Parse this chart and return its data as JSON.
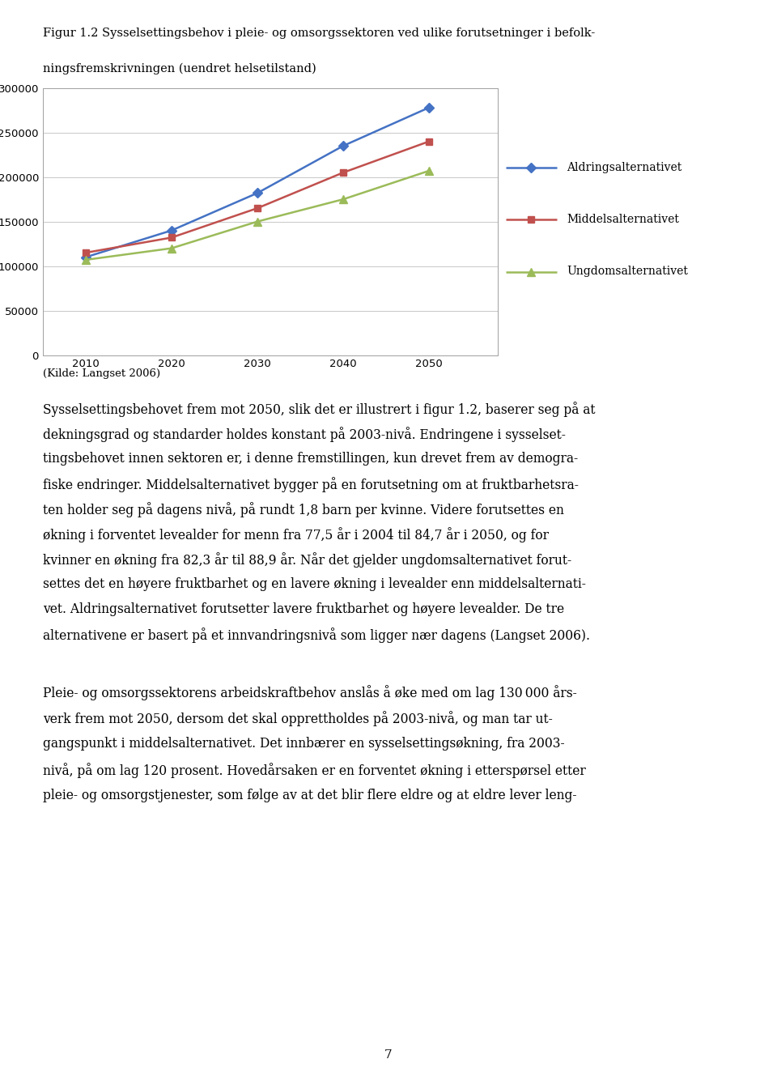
{
  "title_line1": "Figur 1.2 Sysselsettingsbehov i pleie- og omsorgssektoren ved ulike forutsetninger i befolk-",
  "title_line2": "ningsfremskrivningen (uendret helsetilstand)",
  "x_values": [
    2010,
    2020,
    2030,
    2040,
    2050
  ],
  "aldring": [
    110000,
    140000,
    182000,
    235000,
    278000
  ],
  "middels": [
    115000,
    132000,
    165000,
    205000,
    240000
  ],
  "ungdom": [
    107000,
    120000,
    150000,
    175000,
    207000
  ],
  "aldring_color": "#4472C4",
  "middels_color": "#C0504D",
  "ungdom_color": "#9BBB59",
  "aldring_label": "Aldringsalternativet",
  "middels_label": "Middelsalternativet",
  "ungdom_label": "Ungdomsalternativet",
  "ylim": [
    0,
    300000
  ],
  "yticks": [
    0,
    50000,
    100000,
    150000,
    200000,
    250000,
    300000
  ],
  "xlim": [
    2005,
    2058
  ],
  "xticks": [
    2010,
    2020,
    2030,
    2040,
    2050
  ],
  "source_text": "(Kilde: Langset 2006)",
  "page_number": "7",
  "background_color": "#FFFFFF",
  "chart_bg": "#FFFFFF",
  "grid_color": "#C8C8C8",
  "body1_lines": [
    "Sysselsettingsbehovet frem mot 2050, slik det er illustrert i figur 1.2, baserer seg på at",
    "dekningsgrad og standarder holdes konstant på 2003-nivå. Endringene i sysselset-",
    "tingsbehovet innen sektoren er, i denne fremstillingen, kun drevet frem av demogra-",
    "fiske endringer. Middelsalternativet bygger på en forutsetning om at fruktbarhetsra-",
    "ten holder seg på dagens nivå, på rundt 1,8 barn per kvinne. Videre forutsettes en",
    "økning i forventet levealder for menn fra 77,5 år i 2004 til 84,7 år i 2050, og for",
    "kvinner en økning fra 82,3 år til 88,9 år. Når det gjelder ungdomsalternativet forut-",
    "settes det en høyere fruktbarhet og en lavere økning i levealder enn middelsalternati-",
    "vet. Aldringsalternativet forutsetter lavere fruktbarhet og høyere levealder. De tre",
    "alternativene er basert på et innvandringsnivå som ligger nær dagens (Langset 2006)."
  ],
  "body2_lines": [
    "Pleie- og omsorgssektorens arbeidskraftbehov anslås å øke med om lag 130 000 års-",
    "verk frem mot 2050, dersom det skal opprettholdes på 2003-nivå, og man tar ut-",
    "gangspunkt i middelsalternativet. Det innbærer en sysselsettingsøkning, fra 2003-",
    "nivå, på om lag 120 prosent. Hovedårsaken er en forventet økning i etterspørsel etter",
    "pleie- og omsorgstjenester, som følge av at det blir flere eldre og at eldre lever leng-"
  ]
}
